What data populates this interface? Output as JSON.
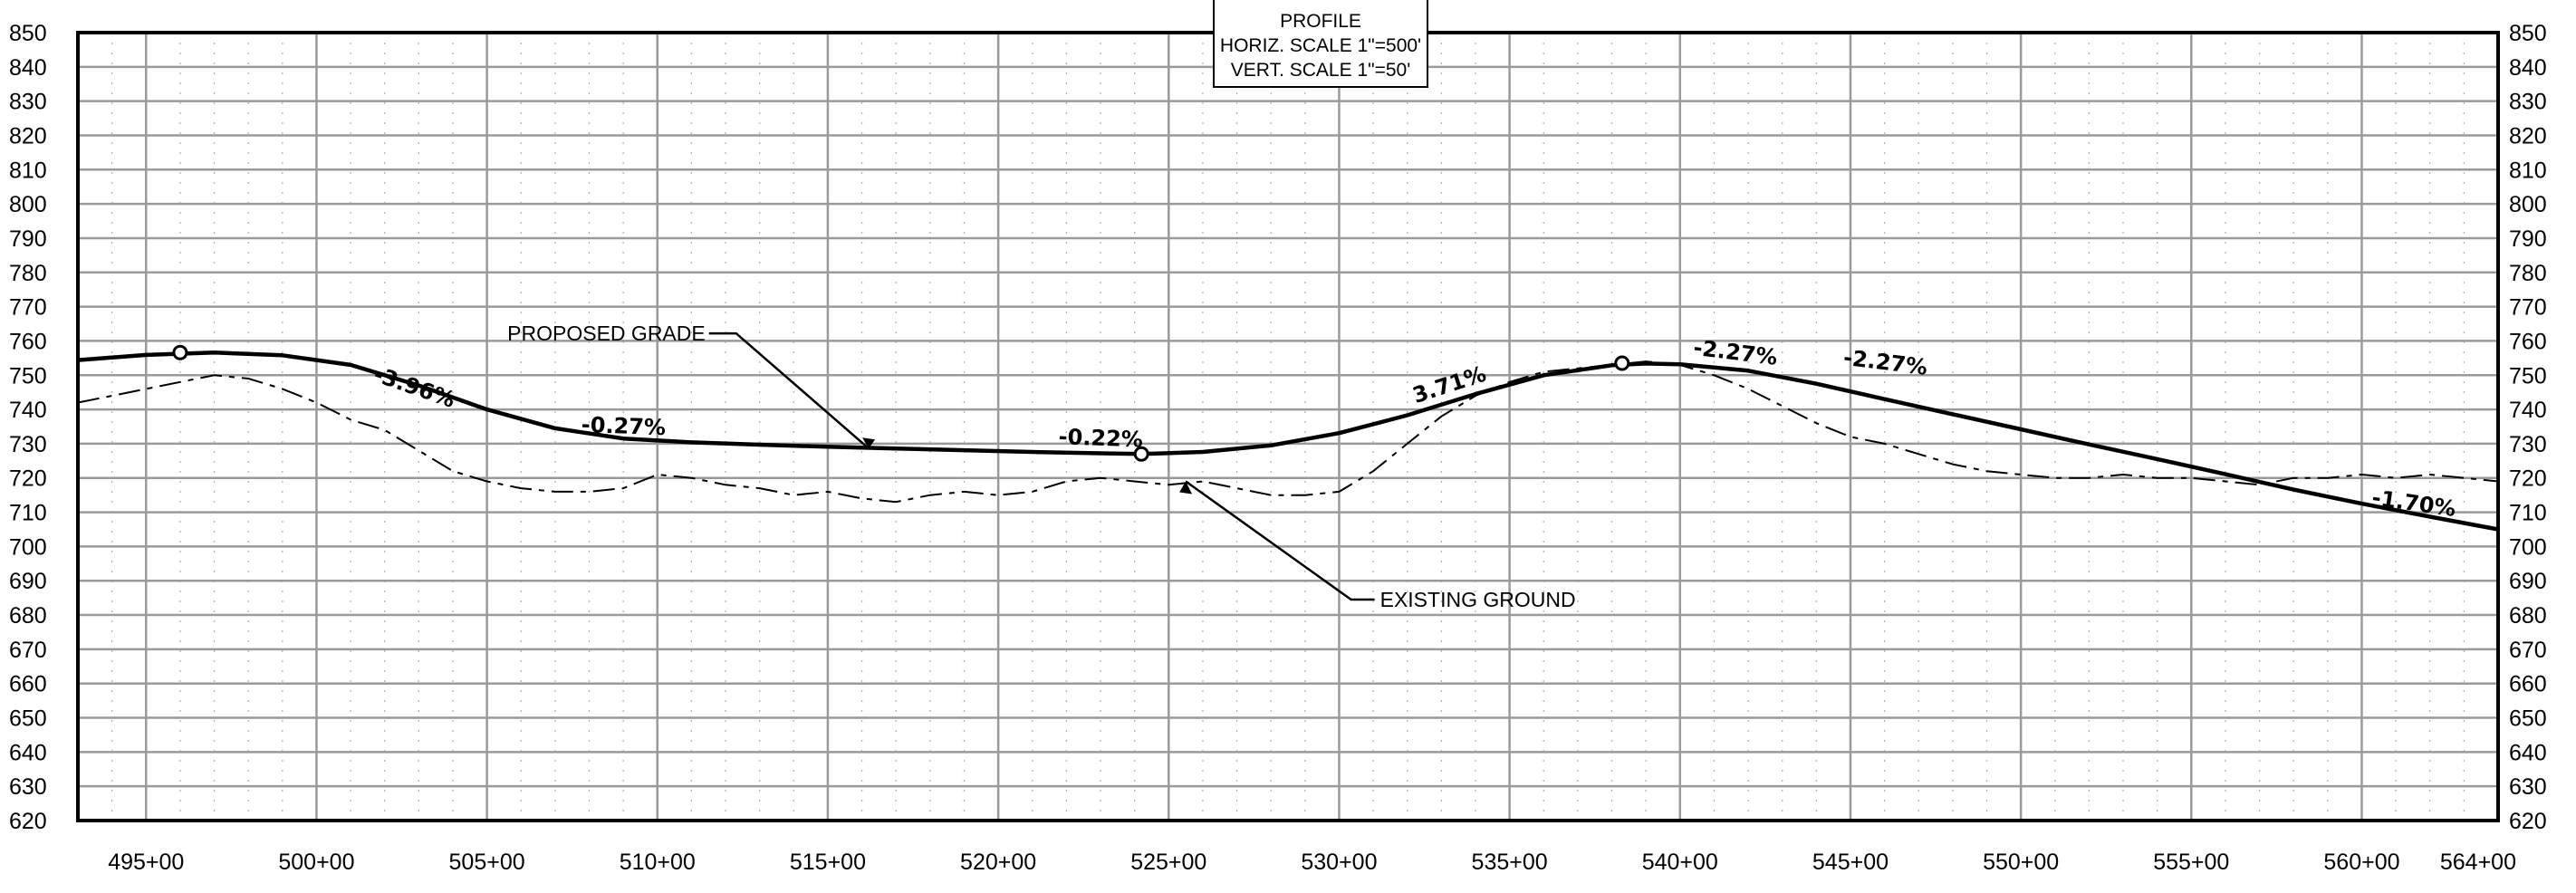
{
  "chart_data": {
    "type": "line",
    "title": "PROFILE",
    "subtitle_lines": [
      "HORIZ. SCALE 1\"=500'",
      "VERT. SCALE 1\"=50'"
    ],
    "xlabel": "",
    "ylabel": "",
    "x_unit": "station (ft)",
    "xlim": [
      49300,
      56400
    ],
    "ylim": [
      620,
      850
    ],
    "x_ticks": [
      49500,
      50000,
      50500,
      51000,
      51500,
      52000,
      52500,
      53000,
      53500,
      54000,
      54500,
      55000,
      55500,
      56000,
      56400
    ],
    "x_tick_labels": [
      "495+00",
      "500+00",
      "505+00",
      "510+00",
      "515+00",
      "520+00",
      "525+00",
      "530+00",
      "535+00",
      "540+00",
      "545+00",
      "550+00",
      "555+00",
      "560+00",
      "564+00"
    ],
    "y_ticks": [
      620,
      630,
      640,
      650,
      660,
      670,
      680,
      690,
      700,
      710,
      720,
      730,
      740,
      750,
      760,
      770,
      780,
      790,
      800,
      810,
      820,
      830,
      840,
      850
    ],
    "y_tick_labels": [
      "620",
      "630",
      "640",
      "650",
      "660",
      "670",
      "680",
      "690",
      "700",
      "710",
      "720",
      "730",
      "740",
      "750",
      "760",
      "770",
      "780",
      "790",
      "800",
      "810",
      "820",
      "830",
      "840",
      "850"
    ],
    "grid": true,
    "series": [
      {
        "name": "PROPOSED GRADE",
        "style": "solid-bold",
        "x": [
          49300,
          49500,
          49700,
          49900,
          50100,
          50300,
          50500,
          50700,
          50900,
          51100,
          51300,
          51500,
          51700,
          51900,
          52100,
          52300,
          52420,
          52600,
          52800,
          53000,
          53200,
          53400,
          53600,
          53800,
          53900,
          54000,
          54200,
          54400,
          54600,
          54800,
          55000,
          55200,
          55400,
          55600,
          55800,
          56000,
          56200,
          56400
        ],
        "y": [
          754.4,
          755.9,
          756.6,
          755.8,
          753.0,
          747.0,
          740.0,
          734.5,
          731.5,
          730.4,
          729.7,
          729.1,
          728.6,
          728.1,
          727.6,
          727.2,
          727.0,
          727.6,
          729.5,
          733.1,
          738.3,
          744.5,
          750.0,
          752.9,
          753.4,
          753.2,
          751.3,
          747.5,
          743.0,
          738.6,
          734.2,
          729.8,
          725.5,
          721.1,
          716.6,
          712.5,
          708.7,
          705.0
        ]
      },
      {
        "name": "EXISTING GROUND",
        "style": "solid-thin-jagged",
        "x": [
          49300,
          49400,
          49500,
          49600,
          49700,
          49800,
          49900,
          50000,
          50100,
          50200,
          50300,
          50400,
          50500,
          50600,
          50700,
          50800,
          50900,
          51000,
          51100,
          51200,
          51300,
          51400,
          51500,
          51600,
          51700,
          51800,
          51900,
          52000,
          52100,
          52200,
          52300,
          52400,
          52500,
          52600,
          52700,
          52800,
          52900,
          53000,
          53100,
          53200,
          53300,
          53400,
          53500,
          53600,
          53700,
          53800,
          53900,
          54000,
          54100,
          54200,
          54300,
          54400,
          54500,
          54600,
          54700,
          54800,
          54900,
          55000,
          55100,
          55200,
          55300,
          55400,
          55500,
          55600,
          55700,
          55800,
          55900,
          56000,
          56100,
          56200,
          56300,
          56400
        ],
        "y": [
          742,
          744,
          746,
          748,
          750,
          749,
          746,
          742,
          737,
          734,
          728,
          722,
          719,
          717,
          716,
          716,
          717,
          721,
          720,
          718,
          717,
          715,
          716,
          714,
          713,
          715,
          716,
          715,
          716,
          719,
          720,
          719,
          718,
          719,
          717,
          715,
          715,
          716,
          722,
          730,
          738,
          744,
          748,
          751,
          752,
          753,
          754,
          753,
          750,
          746,
          741,
          736,
          732,
          730,
          727,
          724,
          722,
          721,
          720,
          720,
          721,
          720,
          720,
          719,
          718,
          720,
          720,
          721,
          720,
          721,
          720,
          719
        ]
      }
    ],
    "pvi_points": [
      {
        "x": 49600,
        "y": 756.6
      },
      {
        "x": 52420,
        "y": 727.0
      },
      {
        "x": 53830,
        "y": 753.5
      }
    ],
    "grade_labels": [
      {
        "text": "-3.96%",
        "x": 50280,
        "y": 744.5,
        "angle": 19
      },
      {
        "text": "-0.27%",
        "x": 50900,
        "y": 733.0,
        "angle": 2
      },
      {
        "text": "-0.22%",
        "x": 52300,
        "y": 729.5,
        "angle": 2
      },
      {
        "text": "3.71%",
        "x": 53330,
        "y": 745.2,
        "angle": -18
      },
      {
        "text": "-2.27%",
        "x": 54160,
        "y": 754.5,
        "angle": 7
      },
      {
        "text": "-2.27%",
        "x": 54600,
        "y": 751.6,
        "angle": 7
      },
      {
        "text": "-1.70%",
        "x": 56150,
        "y": 710.5,
        "angle": 8
      }
    ],
    "annotations": [
      {
        "text": "PROPOSED GRADE",
        "label_x": 50560,
        "label_y": 762.2,
        "target_x": 51620,
        "target_y": 728.6
      },
      {
        "text": "EXISTING GROUND",
        "label_x": 53120,
        "label_y": 684.5,
        "target_x": 52550,
        "target_y": 719.0
      }
    ]
  }
}
